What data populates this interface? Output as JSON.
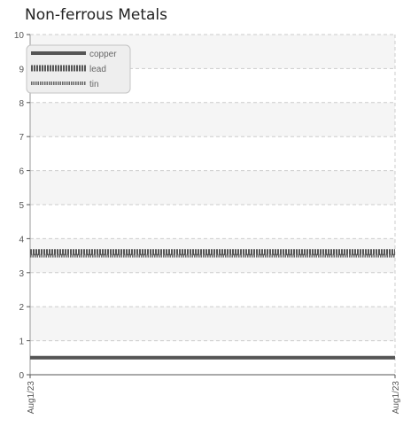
{
  "chart_data": {
    "type": "line",
    "title": "Non-ferrous Metals",
    "xlabel": "",
    "ylabel": "",
    "x": [
      "Aug1/23",
      "Aug1/23"
    ],
    "ylim": [
      0,
      10
    ],
    "yticks": [
      0,
      1,
      2,
      3,
      4,
      5,
      6,
      7,
      8,
      9,
      10
    ],
    "series": [
      {
        "name": "copper",
        "values": [
          0.5,
          0.5
        ],
        "color": "#555555",
        "style": "solid"
      },
      {
        "name": "lead",
        "values": [
          3.6,
          3.6
        ],
        "color": "#555555",
        "style": "dotted-thick"
      },
      {
        "name": "tin",
        "values": [
          3.5,
          3.5
        ],
        "color": "#666666",
        "style": "dotted-thin"
      }
    ],
    "grid": true,
    "legend": "top-left"
  }
}
